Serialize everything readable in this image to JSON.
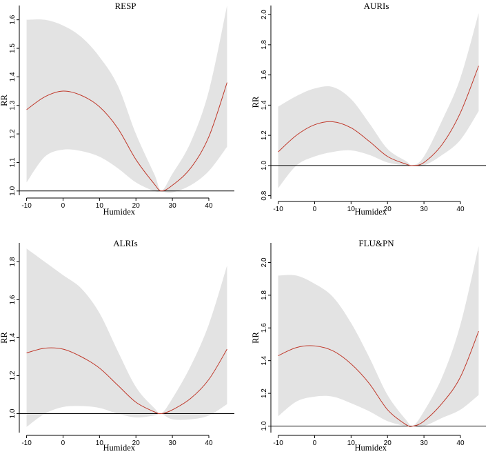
{
  "colors": {
    "band": "#e3e3e3",
    "curve": "#c0392b",
    "axis": "#000000",
    "reference": "#000000"
  },
  "chart_data": [
    {
      "type": "line",
      "title": "RESP",
      "xlabel": "Humidex",
      "ylabel": "RR",
      "xlim": [
        -12,
        47
      ],
      "ylim": [
        0.985,
        1.65
      ],
      "xticks": [
        -10,
        0,
        10,
        20,
        30,
        40
      ],
      "yticks": [
        1.0,
        1.1,
        1.2,
        1.3,
        1.4,
        1.5,
        1.6
      ],
      "reference_y": 1.0,
      "series": [
        {
          "name": "RR",
          "x": [
            -10,
            -5,
            0,
            5,
            10,
            15,
            20,
            25,
            27,
            30,
            35,
            40,
            45
          ],
          "values": [
            1.285,
            1.33,
            1.35,
            1.335,
            1.295,
            1.22,
            1.11,
            1.025,
            1.0,
            1.02,
            1.08,
            1.19,
            1.38
          ]
        },
        {
          "name": "Lower CI",
          "x": [
            -10,
            -5,
            0,
            5,
            10,
            15,
            20,
            25,
            27,
            30,
            35,
            40,
            45
          ],
          "values": [
            1.03,
            1.12,
            1.145,
            1.14,
            1.12,
            1.08,
            1.03,
            1.0,
            0.998,
            0.995,
            1.02,
            1.07,
            1.155
          ]
        },
        {
          "name": "Upper CI",
          "x": [
            -10,
            -5,
            0,
            5,
            10,
            15,
            20,
            25,
            27,
            30,
            35,
            40,
            45
          ],
          "values": [
            1.6,
            1.6,
            1.58,
            1.54,
            1.47,
            1.37,
            1.2,
            1.06,
            1.002,
            1.06,
            1.17,
            1.35,
            1.65
          ]
        }
      ]
    },
    {
      "type": "line",
      "title": "AURIs",
      "xlabel": "Humidex",
      "ylabel": "RR",
      "xlim": [
        -12,
        47
      ],
      "ylim": [
        0.78,
        2.06
      ],
      "xticks": [
        -10,
        0,
        10,
        20,
        30,
        40
      ],
      "yticks": [
        0.8,
        1.0,
        1.2,
        1.4,
        1.6,
        1.8,
        2.0
      ],
      "reference_y": 1.0,
      "series": [
        {
          "name": "RR",
          "x": [
            -10,
            -5,
            0,
            5,
            10,
            15,
            20,
            25,
            27,
            30,
            35,
            40,
            45
          ],
          "values": [
            1.09,
            1.2,
            1.27,
            1.29,
            1.25,
            1.16,
            1.06,
            1.01,
            1.0,
            1.02,
            1.14,
            1.35,
            1.66
          ]
        },
        {
          "name": "Lower CI",
          "x": [
            -10,
            -5,
            0,
            5,
            10,
            15,
            20,
            25,
            27,
            30,
            35,
            40,
            45
          ],
          "values": [
            0.85,
            1.0,
            1.06,
            1.09,
            1.1,
            1.07,
            1.02,
            1.0,
            0.998,
            1.0,
            1.07,
            1.17,
            1.36
          ]
        },
        {
          "name": "Upper CI",
          "x": [
            -10,
            -5,
            0,
            5,
            10,
            15,
            20,
            25,
            27,
            30,
            35,
            40,
            45
          ],
          "values": [
            1.39,
            1.46,
            1.51,
            1.52,
            1.44,
            1.28,
            1.11,
            1.03,
            1.002,
            1.06,
            1.3,
            1.58,
            2.01
          ]
        }
      ]
    },
    {
      "type": "line",
      "title": "ALRIs",
      "xlabel": "Humidex",
      "ylabel": "RR",
      "xlim": [
        -12,
        47
      ],
      "ylim": [
        0.9,
        1.9
      ],
      "xticks": [
        -10,
        0,
        10,
        20,
        30,
        40
      ],
      "yticks": [
        1.0,
        1.2,
        1.4,
        1.6,
        1.8
      ],
      "reference_y": 1.0,
      "series": [
        {
          "name": "RR",
          "x": [
            -10,
            -5,
            0,
            5,
            10,
            15,
            20,
            25,
            27,
            30,
            35,
            40,
            45
          ],
          "values": [
            1.32,
            1.345,
            1.34,
            1.3,
            1.24,
            1.15,
            1.06,
            1.01,
            1.0,
            1.02,
            1.08,
            1.18,
            1.34
          ]
        },
        {
          "name": "Lower CI",
          "x": [
            -10,
            -5,
            0,
            5,
            10,
            15,
            20,
            25,
            27,
            30,
            35,
            40,
            45
          ],
          "values": [
            0.93,
            1.0,
            1.035,
            1.04,
            1.03,
            1.0,
            0.98,
            0.99,
            0.998,
            0.97,
            0.97,
            0.99,
            1.05
          ]
        },
        {
          "name": "Upper CI",
          "x": [
            -10,
            -5,
            0,
            5,
            10,
            15,
            20,
            25,
            27,
            30,
            35,
            40,
            45
          ],
          "values": [
            1.87,
            1.8,
            1.73,
            1.66,
            1.53,
            1.33,
            1.14,
            1.03,
            1.002,
            1.08,
            1.25,
            1.47,
            1.78
          ]
        }
      ]
    },
    {
      "type": "line",
      "title": "FLU&PN",
      "xlabel": "Humidex",
      "ylabel": "RR",
      "xlim": [
        -12,
        47
      ],
      "ylim": [
        0.96,
        2.12
      ],
      "xticks": [
        -10,
        0,
        10,
        20,
        30,
        40
      ],
      "yticks": [
        1.0,
        1.2,
        1.4,
        1.6,
        1.8,
        2.0
      ],
      "reference_y": 1.0,
      "series": [
        {
          "name": "RR",
          "x": [
            -10,
            -5,
            0,
            5,
            10,
            15,
            20,
            25,
            27,
            30,
            35,
            40,
            45
          ],
          "values": [
            1.43,
            1.48,
            1.49,
            1.46,
            1.38,
            1.26,
            1.1,
            1.01,
            1.0,
            1.03,
            1.14,
            1.3,
            1.58
          ]
        },
        {
          "name": "Lower CI",
          "x": [
            -10,
            -5,
            0,
            5,
            10,
            15,
            20,
            25,
            27,
            30,
            35,
            40,
            45
          ],
          "values": [
            1.06,
            1.15,
            1.18,
            1.18,
            1.14,
            1.09,
            1.03,
            1.0,
            0.998,
            1.0,
            1.05,
            1.1,
            1.19
          ]
        },
        {
          "name": "Upper CI",
          "x": [
            -10,
            -5,
            0,
            5,
            10,
            15,
            20,
            25,
            27,
            30,
            35,
            40,
            45
          ],
          "values": [
            1.92,
            1.92,
            1.87,
            1.79,
            1.63,
            1.42,
            1.19,
            1.04,
            1.002,
            1.09,
            1.3,
            1.62,
            2.1
          ]
        }
      ]
    }
  ]
}
